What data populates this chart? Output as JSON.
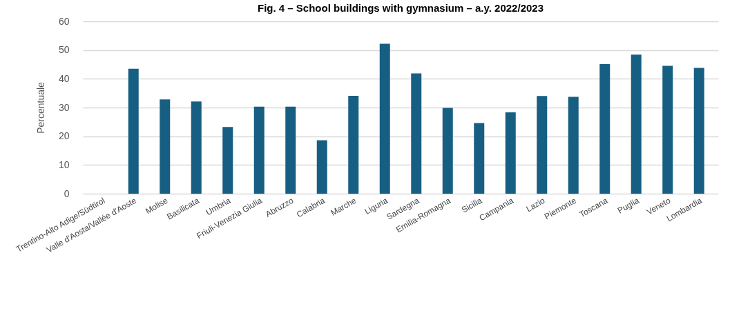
{
  "chart_data": {
    "type": "bar",
    "title": "Fig. 4 – School buildings with gymnasium – a.y. 2022/2023",
    "ylabel": "Percentuale",
    "categories": [
      "Trentino-Alto Adige/Südtirol",
      "Valle d'Aosta/Vallée d'Aoste",
      "Molise",
      "Basilicata",
      "Umbria",
      "Friuli-Venezia Giulia",
      "Abruzzo",
      "Calabria",
      "Marche",
      "Liguria",
      "Sardegna",
      "Emilia-Romagna",
      "Sicilia",
      "Campania",
      "Lazio",
      "Piemonte",
      "Toscana",
      "Puglia",
      "Veneto",
      "Lombardia"
    ],
    "values": [
      null,
      43.5,
      32.8,
      32.1,
      23.2,
      30.3,
      30.3,
      18.6,
      34.1,
      52.2,
      41.9,
      29.9,
      24.6,
      28.3,
      34.0,
      33.7,
      45.1,
      48.4,
      44.5,
      43.8
    ],
    "color": "#175f82",
    "ylim": [
      0,
      60
    ],
    "yticks": [
      0,
      10,
      20,
      30,
      40,
      50,
      60
    ],
    "grid": "y"
  }
}
